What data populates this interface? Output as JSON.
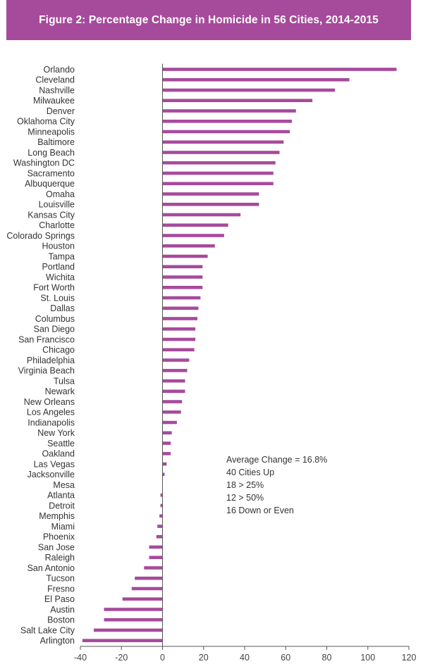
{
  "header": {
    "title": "Figure 2: Percentage Change in Homicide in 56 Cities, 2014-2015"
  },
  "colors": {
    "banner": "#a64a9c",
    "bar": "#a64a9c",
    "axis": "#555555"
  },
  "chart_data": {
    "type": "bar",
    "orientation": "horizontal",
    "title": "Figure 2: Percentage Change in Homicide in 56 Cities, 2014-2015",
    "xlabel": "",
    "ylabel": "",
    "xlim": [
      -40,
      120
    ],
    "x_ticks": [
      -40,
      -20,
      0,
      20,
      40,
      60,
      80,
      100,
      120
    ],
    "grid": false,
    "categories": [
      "Orlando",
      "Cleveland",
      "Nashville",
      "Milwaukee",
      "Denver",
      "Oklahoma City",
      "Minneapolis",
      "Baltimore",
      "Long Beach",
      "Washington DC",
      "Sacramento",
      "Albuquerque",
      "Omaha",
      "Louisville",
      "Kansas City",
      "Charlotte",
      "Colorado Springs",
      "Houston",
      "Tampa",
      "Portland",
      "Wichita",
      "Fort Worth",
      "St. Louis",
      "Dallas",
      "Columbus",
      "San Diego",
      "San Francisco",
      "Chicago",
      "Philadelphia",
      "Virginia Beach",
      "Tulsa",
      "Newark",
      "New Orleans",
      "Los Angeles",
      "Indianapolis",
      "New York",
      "Seattle",
      "Oakland",
      "Las Vegas",
      "Jacksonville",
      "Mesa",
      "Atlanta",
      "Detroit",
      "Memphis",
      "Miami",
      "Phoenix",
      "San Jose",
      "Raleigh",
      "San Antonio",
      "Tucson",
      "Fresno",
      "El Paso",
      "Austin",
      "Boston",
      "Salt Lake City",
      "Arlington"
    ],
    "values": [
      114,
      91,
      84,
      73,
      65,
      63,
      62,
      59,
      57,
      55,
      54,
      54,
      47,
      47,
      38,
      32,
      30,
      25.5,
      22,
      19.5,
      19.5,
      19.5,
      18.5,
      17.5,
      17,
      16,
      16,
      15.5,
      13,
      12,
      11,
      11,
      9.5,
      9,
      7,
      4.5,
      4,
      4,
      2,
      1,
      0,
      -1,
      -1,
      -1.5,
      -2.5,
      -3,
      -6.5,
      -6.5,
      -9,
      -13.5,
      -15,
      -19.5,
      -28.5,
      -28.5,
      -33.5,
      -39
    ]
  },
  "annotation": {
    "lines": [
      "Average Change = 16.8%",
      "40 Cities Up",
      "18 > 25%",
      "12 > 50%",
      "16 Down or Even"
    ]
  }
}
